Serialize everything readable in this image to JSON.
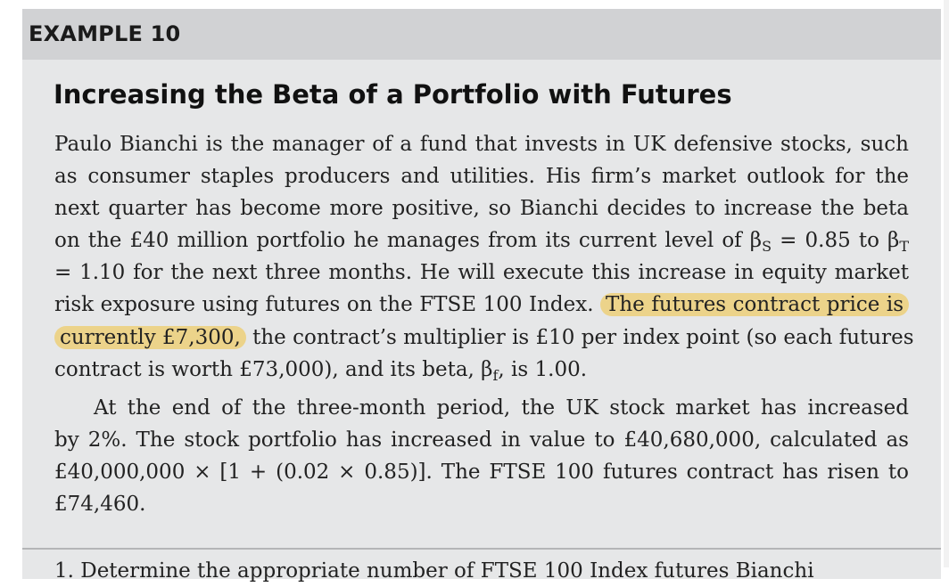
{
  "label": "EXAMPLE 10",
  "title": "Increasing the Beta of a Portfolio with Futures",
  "para1": {
    "l1": "Paulo Bianchi is the manager of a fund that invests in UK defensive stocks, such",
    "l2": "as consumer staples producers and utilities. His firm’s market outlook for the",
    "l3": "next quarter has become more positive, so Bianchi decides to increase the beta",
    "l4_pre": "on the £40 million portfolio he manages from its current level of β",
    "l4_sub1": "S",
    "l4_mid": " = 0.85 to β",
    "l4_sub2": "T",
    "l5": "= 1.10 for the next three months. He will execute this increase in equity market",
    "l6_pre": "risk exposure using futures on the FTSE 100 Index. ",
    "l6_hl": "The futures contract price is",
    "l7_hl": "currently £7,300,",
    "l7_post": " the contract’s multiplier is £10 per index point (so each futures",
    "l8_pre": "contract is worth £73,000), and its beta, β",
    "l8_sub": "f",
    "l8_post": ", is 1.00."
  },
  "para2": {
    "l1": "At the end of the three-month period, the UK stock market has increased",
    "l2": "by 2%. The stock portfolio has increased in value to £40,680,000, calculated as",
    "l3": "£40,000,000 × [1 + (0.02 × 0.85)]. The FTSE 100 futures contract has risen to",
    "l4": "£74,460."
  },
  "next_line_partial": "1. Determine the appropriate number of FTSE 100 Index futures Bianchi",
  "colors": {
    "box_background": "#e6e7e8",
    "header_band": "#d1d2d4",
    "highlight": "#ecd38a"
  }
}
